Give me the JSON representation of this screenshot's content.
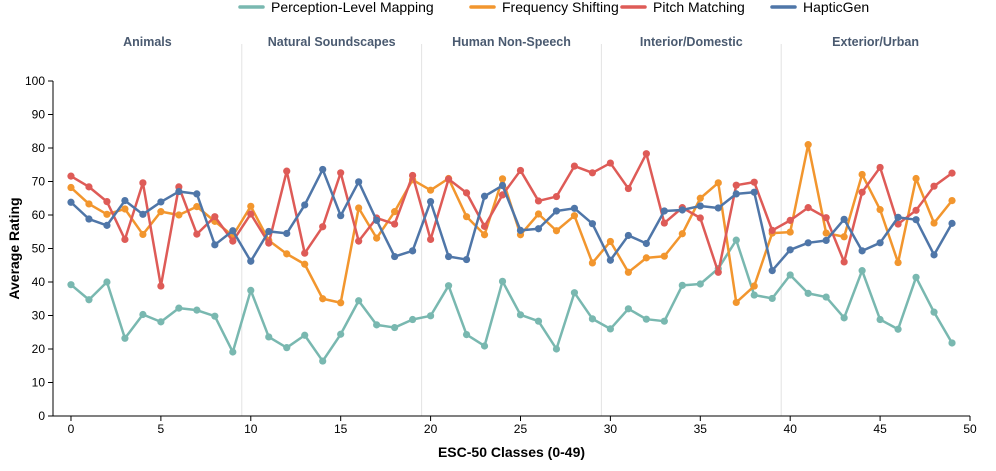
{
  "chart_data": {
    "type": "line",
    "xlabel": "ESC-50 Classes (0-49)",
    "ylabel": "Average Rating",
    "xlim": [
      -1,
      50
    ],
    "ylim": [
      0,
      100
    ],
    "x_ticks": [
      0,
      5,
      10,
      15,
      20,
      25,
      30,
      35,
      40,
      45,
      50
    ],
    "y_ticks": [
      0,
      10,
      20,
      30,
      40,
      50,
      60,
      70,
      80,
      90,
      100
    ],
    "legend_position": "top-center",
    "groups": [
      {
        "label": "Animals",
        "start": -1,
        "end": 9.5
      },
      {
        "label": "Natural Soundscapes",
        "start": 9.5,
        "end": 19.5
      },
      {
        "label": "Human Non-Speech",
        "start": 19.5,
        "end": 29.5
      },
      {
        "label": "Interior/Domestic",
        "start": 29.5,
        "end": 39.5
      },
      {
        "label": "Exterior/Urban",
        "start": 39.5,
        "end": 50
      }
    ],
    "x": [
      0,
      1,
      2,
      3,
      4,
      5,
      6,
      7,
      8,
      9,
      10,
      11,
      12,
      13,
      14,
      15,
      16,
      17,
      18,
      19,
      20,
      21,
      22,
      23,
      24,
      25,
      26,
      27,
      28,
      29,
      30,
      31,
      32,
      33,
      34,
      35,
      36,
      37,
      38,
      39,
      40,
      41,
      42,
      43,
      44,
      45,
      46,
      47,
      48,
      49
    ],
    "series": [
      {
        "name": "Perception-Level Mapping",
        "color": "#79b8b0",
        "values": [
          39.2,
          34.7,
          40.0,
          23.2,
          30.3,
          28.1,
          32.2,
          31.6,
          29.8,
          19.1,
          37.5,
          23.6,
          20.4,
          24.1,
          16.4,
          24.4,
          34.4,
          27.2,
          26.4,
          28.8,
          29.9,
          38.9,
          24.3,
          20.9,
          40.2,
          30.2,
          28.3,
          20.0,
          36.8,
          29.0,
          26.0,
          32.0,
          28.9,
          28.3,
          39.0,
          39.4,
          44.0,
          52.5,
          36.1,
          35.1,
          42.1,
          36.6,
          35.5,
          29.3,
          43.4,
          28.8,
          25.9,
          41.4,
          31.0,
          21.8
        ]
      },
      {
        "name": "Frequency Shifting",
        "color": "#f2962e",
        "values": [
          68.2,
          63.3,
          60.2,
          61.8,
          54.2,
          61.0,
          60.0,
          62.5,
          58.1,
          53.8,
          62.6,
          52.4,
          48.4,
          45.3,
          35.0,
          33.8,
          62.1,
          53.1,
          61.0,
          70.5,
          67.4,
          70.9,
          59.5,
          54.1,
          70.8,
          54.1,
          60.3,
          55.3,
          59.8,
          45.7,
          52.1,
          42.9,
          47.2,
          47.7,
          54.4,
          65.0,
          69.6,
          33.9,
          38.8,
          54.6,
          54.9,
          81.0,
          54.6,
          53.5,
          72.1,
          61.6,
          45.8,
          70.9,
          57.6,
          64.3
        ]
      },
      {
        "name": "Pitch Matching",
        "color": "#de5b57",
        "values": [
          71.6,
          68.4,
          64.0,
          52.7,
          69.6,
          38.8,
          68.4,
          54.3,
          59.5,
          52.2,
          60.3,
          51.6,
          73.1,
          48.6,
          56.5,
          72.6,
          52.2,
          59.1,
          57.3,
          71.8,
          52.7,
          70.7,
          66.6,
          56.6,
          66.0,
          73.3,
          64.2,
          65.5,
          74.6,
          72.6,
          75.5,
          67.9,
          78.3,
          57.6,
          62.2,
          59.1,
          42.9,
          68.9,
          69.8,
          55.4,
          58.4,
          62.2,
          59.2,
          46.0,
          66.8,
          74.2,
          57.3,
          61.4,
          68.6,
          72.5
        ]
      },
      {
        "name": "HapticGen",
        "color": "#4f76a8",
        "values": [
          63.8,
          58.8,
          56.9,
          64.3,
          60.2,
          63.9,
          67.0,
          66.3,
          51.1,
          55.3,
          46.2,
          55.1,
          54.5,
          63.0,
          73.6,
          59.8,
          69.9,
          58.4,
          47.6,
          49.3,
          64.0,
          47.6,
          46.7,
          65.6,
          68.8,
          55.4,
          55.9,
          61.2,
          62.0,
          57.4,
          46.5,
          53.9,
          51.5,
          61.2,
          61.5,
          62.7,
          62.1,
          66.3,
          66.8,
          43.4,
          49.6,
          51.7,
          52.4,
          58.7,
          49.3,
          51.7,
          59.3,
          58.6,
          48.1,
          57.5
        ]
      }
    ]
  }
}
